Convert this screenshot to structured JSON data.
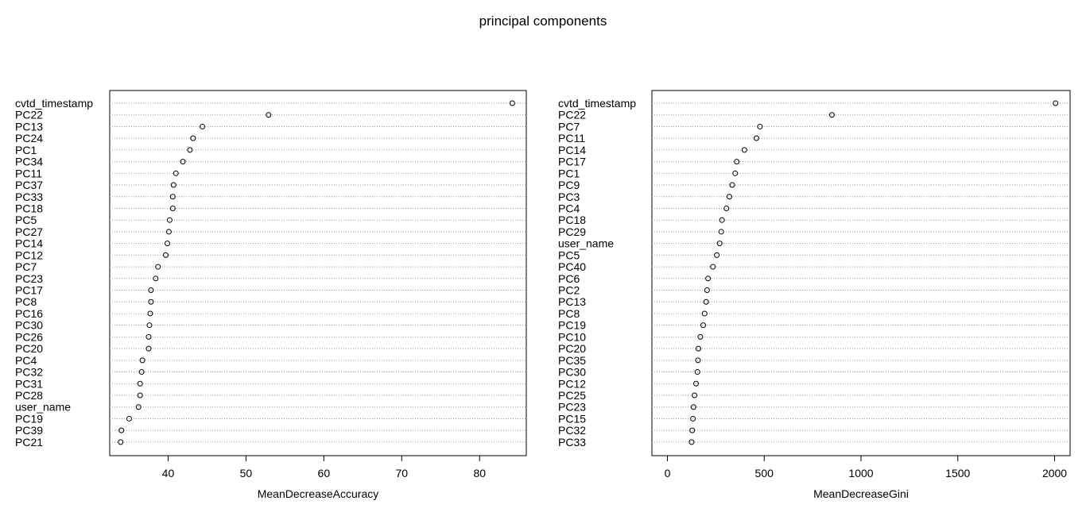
{
  "title": "principal components",
  "chart_data": [
    {
      "type": "scatter",
      "variant": "dotchart",
      "xlabel": "MeanDecreaseAccuracy",
      "ylabel": "",
      "xlim": [
        32.5,
        86
      ],
      "xticks": [
        40,
        50,
        60,
        70,
        80
      ],
      "grid": "dotted horizontal lines per category",
      "categories": [
        "cvtd_timestamp",
        "PC22",
        "PC13",
        "PC24",
        "PC1",
        "PC34",
        "PC11",
        "PC37",
        "PC33",
        "PC18",
        "PC5",
        "PC27",
        "PC14",
        "PC12",
        "PC7",
        "PC23",
        "PC17",
        "PC8",
        "PC16",
        "PC30",
        "PC26",
        "PC20",
        "PC4",
        "PC32",
        "PC31",
        "PC28",
        "user_name",
        "PC19",
        "PC39",
        "PC21"
      ],
      "values": [
        84.2,
        52.9,
        44.4,
        43.2,
        42.8,
        41.9,
        41.0,
        40.7,
        40.6,
        40.6,
        40.2,
        40.1,
        39.9,
        39.7,
        38.7,
        38.4,
        37.8,
        37.8,
        37.7,
        37.6,
        37.5,
        37.5,
        36.7,
        36.6,
        36.4,
        36.4,
        36.2,
        35.0,
        34.0,
        33.9
      ]
    },
    {
      "type": "scatter",
      "variant": "dotchart",
      "xlabel": "MeanDecreaseGini",
      "ylabel": "",
      "xlim": [
        -80,
        2080
      ],
      "xticks": [
        0,
        500,
        1000,
        1500,
        2000
      ],
      "grid": "dotted horizontal lines per category",
      "categories": [
        "cvtd_timestamp",
        "PC22",
        "PC7",
        "PC11",
        "PC14",
        "PC17",
        "PC1",
        "PC9",
        "PC3",
        "PC4",
        "PC18",
        "PC29",
        "user_name",
        "PC5",
        "PC40",
        "PC6",
        "PC2",
        "PC13",
        "PC8",
        "PC19",
        "PC10",
        "PC20",
        "PC35",
        "PC30",
        "PC12",
        "PC25",
        "PC23",
        "PC15",
        "PC32",
        "PC33"
      ],
      "values": [
        2005,
        850,
        478,
        460,
        398,
        358,
        350,
        335,
        320,
        305,
        282,
        278,
        270,
        255,
        235,
        210,
        205,
        200,
        192,
        185,
        170,
        160,
        158,
        155,
        148,
        140,
        135,
        132,
        128,
        125
      ]
    }
  ]
}
